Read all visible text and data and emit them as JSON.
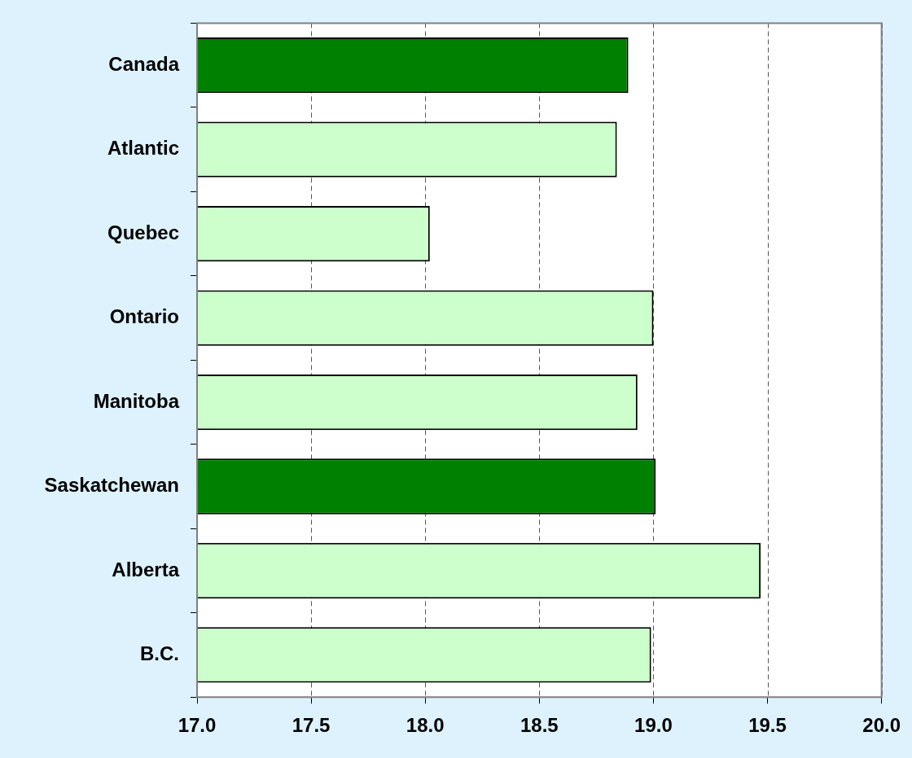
{
  "chart_data": {
    "type": "bar",
    "orientation": "horizontal",
    "categories": [
      "Canada",
      "Atlantic",
      "Quebec",
      "Ontario",
      "Manitoba",
      "Saskatchewan",
      "Alberta",
      "B.C."
    ],
    "values": [
      18.89,
      18.84,
      18.02,
      19.0,
      18.93,
      19.01,
      19.47,
      18.99
    ],
    "colors": [
      "#008000",
      "#ccffcc",
      "#ccffcc",
      "#ccffcc",
      "#ccffcc",
      "#008000",
      "#ccffcc",
      "#ccffcc"
    ],
    "xlim": [
      17.0,
      20.0
    ],
    "xticks": [
      {
        "value": 17,
        "label": "17.0"
      },
      {
        "value": 17.5,
        "label": "17.5"
      },
      {
        "value": 18,
        "label": "18.0"
      },
      {
        "value": 18.5,
        "label": "18.5"
      },
      {
        "value": 19,
        "label": "19.0"
      },
      {
        "value": 19.5,
        "label": "19.5"
      },
      {
        "value": 20,
        "label": "20.0"
      }
    ],
    "grid": "x",
    "legend": false
  }
}
